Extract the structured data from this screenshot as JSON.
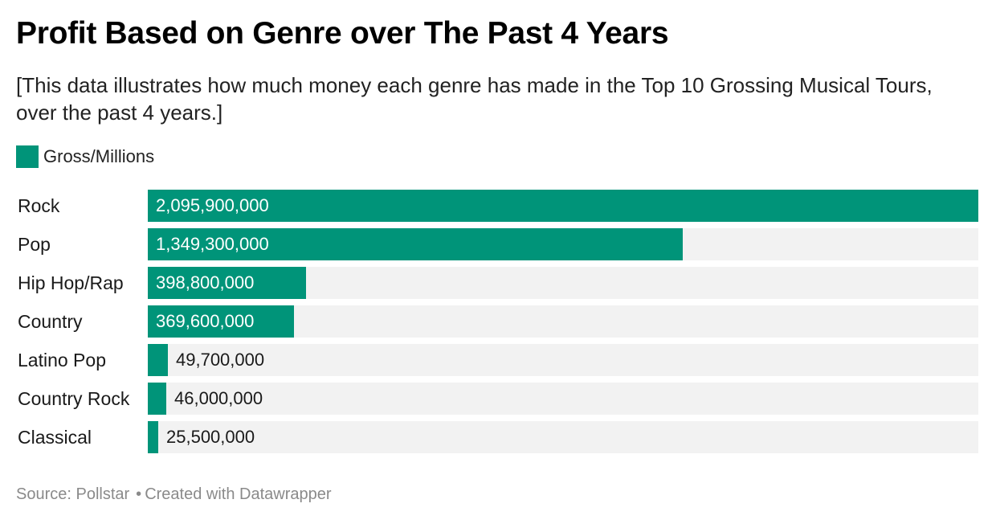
{
  "header": {
    "title": "Profit Based on Genre over The Past 4 Years",
    "subtitle": "[This data illustrates how much money each genre has made in the Top 10 Grossing Musical Tours, over the past 4 years.]"
  },
  "legend": {
    "label": "Gross/Millions"
  },
  "colors": {
    "bar": "#009479",
    "track": "#f2f2f2",
    "label_inside": "#ffffff",
    "label_outside": "#1a1a1a"
  },
  "footer": {
    "source": "Source: Pollstar",
    "separator": "•",
    "credit": "Created with Datawrapper"
  },
  "chart_data": {
    "type": "bar",
    "orientation": "horizontal",
    "categories": [
      "Rock",
      "Pop",
      "Hip Hop/Rap",
      "Country",
      "Latino Pop",
      "Country Rock",
      "Classical"
    ],
    "series": [
      {
        "name": "Gross/Millions",
        "values": [
          2095900000,
          1349300000,
          398800000,
          369600000,
          49700000,
          46000000,
          25500000
        ]
      }
    ],
    "value_labels": [
      "2,095,900,000",
      "1,349,300,000",
      "398,800,000",
      "369,600,000",
      "49,700,000",
      "46,000,000",
      "25,500,000"
    ],
    "xlim": [
      0,
      2095900000
    ],
    "grid": false,
    "legend_position": "top-left"
  }
}
